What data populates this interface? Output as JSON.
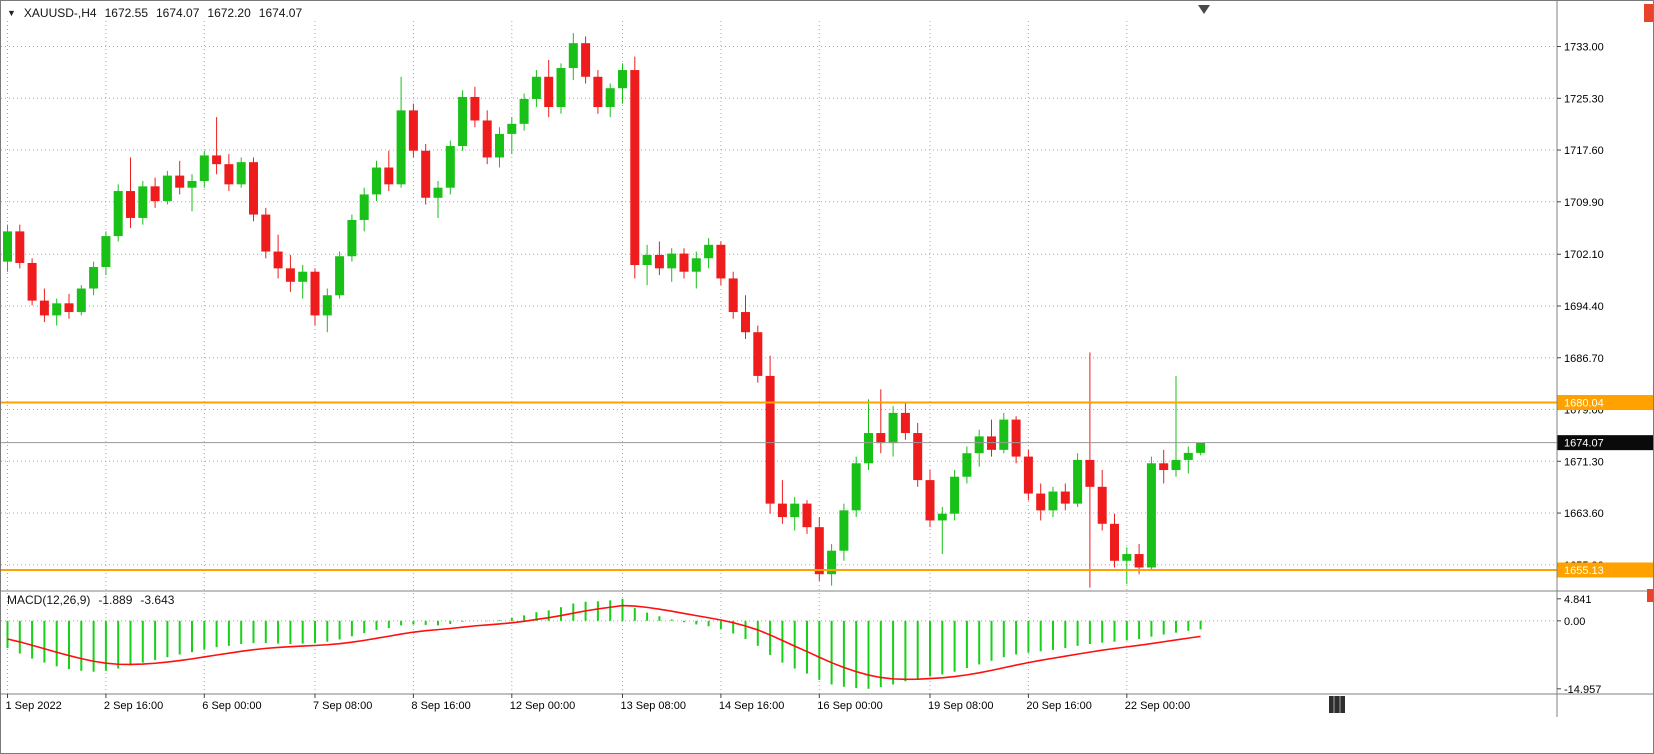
{
  "header": {
    "symbol_period": "XAUUSD-,H4",
    "open": "1672.55",
    "high": "1674.07",
    "low": "1672.20",
    "close": "1674.07"
  },
  "icons": {
    "symbol_dropdown": "▼"
  },
  "macd_info": {
    "label": "MACD(12,26,9)",
    "main": "-1.889",
    "signal": "-3.643"
  },
  "colors": {
    "bull": "#18c018",
    "bear": "#ee1c1c",
    "macd_hist": "#18d018",
    "macd_signal": "#ff0f0f",
    "hline": "#ffa200",
    "grid": "#a8a8a8",
    "price_box_bg": "#0a0a0a",
    "axis_text": "#000000"
  },
  "chart_data": {
    "type": "candlestick",
    "symbol": "XAUUSD-",
    "timeframe": "H4",
    "indicator": "MACD(12,26,9)",
    "legend_position": "top-left",
    "grid": "dotted",
    "price_axis": {
      "top_price": 1736.5,
      "bottom_price": 1652.3,
      "current_price": 1674.07,
      "current_price_label": "1674.07",
      "ticks": [
        {
          "p": 1733.0,
          "label": "1733.00"
        },
        {
          "p": 1725.3,
          "label": "1725.30"
        },
        {
          "p": 1717.6,
          "label": "1717.60"
        },
        {
          "p": 1709.9,
          "label": "1709.90"
        },
        {
          "p": 1702.1,
          "label": "1702.10"
        },
        {
          "p": 1694.4,
          "label": "1694.40"
        },
        {
          "p": 1686.7,
          "label": "1686.70"
        },
        {
          "p": 1679.0,
          "label": "1679.00"
        },
        {
          "p": 1671.3,
          "label": "1671.30"
        },
        {
          "p": 1663.6,
          "label": "1663.60"
        },
        {
          "p": 1655.9,
          "label": "1655.90"
        }
      ]
    },
    "hlines": [
      {
        "price": 1680.04,
        "label": "1680.04",
        "color": "#ffa200"
      },
      {
        "price": 1655.13,
        "label": "1655.13",
        "color": "#ffa200"
      }
    ],
    "time_axis": [
      {
        "index": 0,
        "label": "1 Sep 2022"
      },
      {
        "index": 8,
        "label": "2 Sep 16:00"
      },
      {
        "index": 16,
        "label": "6 Sep 00:00"
      },
      {
        "index": 25,
        "label": "7 Sep 08:00"
      },
      {
        "index": 33,
        "label": "8 Sep 16:00"
      },
      {
        "index": 41,
        "label": "12 Sep 00:00"
      },
      {
        "index": 50,
        "label": "13 Sep 08:00"
      },
      {
        "index": 58,
        "label": "14 Sep 16:00"
      },
      {
        "index": 66,
        "label": "16 Sep 00:00"
      },
      {
        "index": 75,
        "label": "19 Sep 08:00"
      },
      {
        "index": 83,
        "label": "20 Sep 16:00"
      },
      {
        "index": 91,
        "label": "22 Sep 00:00"
      }
    ],
    "candles": [
      [
        1701.0,
        1706.5,
        1699.5,
        1705.5
      ],
      [
        1705.5,
        1706.5,
        1700.0,
        1700.8
      ],
      [
        1700.8,
        1701.5,
        1694.5,
        1695.2
      ],
      [
        1695.2,
        1697.0,
        1692.0,
        1693.0
      ],
      [
        1693.0,
        1695.5,
        1691.5,
        1694.8
      ],
      [
        1694.8,
        1696.2,
        1692.5,
        1693.5
      ],
      [
        1693.5,
        1697.5,
        1693.0,
        1697.0
      ],
      [
        1697.0,
        1701.0,
        1696.0,
        1700.2
      ],
      [
        1700.2,
        1705.5,
        1699.0,
        1704.8
      ],
      [
        1704.8,
        1712.5,
        1704.0,
        1711.5
      ],
      [
        1711.5,
        1716.5,
        1706.0,
        1707.5
      ],
      [
        1707.5,
        1713.0,
        1706.5,
        1712.2
      ],
      [
        1712.2,
        1713.5,
        1709.0,
        1710.0
      ],
      [
        1710.0,
        1714.5,
        1709.5,
        1713.8
      ],
      [
        1713.8,
        1716.0,
        1711.0,
        1712.0
      ],
      [
        1712.0,
        1714.0,
        1708.5,
        1713.0
      ],
      [
        1713.0,
        1717.5,
        1712.0,
        1716.8
      ],
      [
        1716.8,
        1722.5,
        1714.0,
        1715.5
      ],
      [
        1715.5,
        1717.0,
        1711.5,
        1712.5
      ],
      [
        1712.5,
        1716.5,
        1712.0,
        1715.8
      ],
      [
        1715.8,
        1716.5,
        1707.0,
        1708.0
      ],
      [
        1708.0,
        1709.0,
        1701.5,
        1702.5
      ],
      [
        1702.5,
        1705.0,
        1698.5,
        1700.0
      ],
      [
        1700.0,
        1702.0,
        1696.5,
        1698.0
      ],
      [
        1698.0,
        1700.5,
        1695.5,
        1699.5
      ],
      [
        1699.5,
        1700.0,
        1691.5,
        1693.0
      ],
      [
        1693.0,
        1697.0,
        1690.5,
        1696.0
      ],
      [
        1696.0,
        1702.5,
        1695.5,
        1701.8
      ],
      [
        1701.8,
        1708.0,
        1701.0,
        1707.2
      ],
      [
        1707.2,
        1712.0,
        1705.5,
        1711.0
      ],
      [
        1711.0,
        1716.0,
        1710.0,
        1715.0
      ],
      [
        1715.0,
        1717.5,
        1711.5,
        1712.5
      ],
      [
        1712.5,
        1728.5,
        1712.0,
        1723.5
      ],
      [
        1723.5,
        1724.5,
        1716.5,
        1717.5
      ],
      [
        1717.5,
        1718.5,
        1709.5,
        1710.5
      ],
      [
        1710.5,
        1713.0,
        1707.5,
        1712.0
      ],
      [
        1712.0,
        1719.0,
        1711.0,
        1718.2
      ],
      [
        1718.2,
        1726.5,
        1717.5,
        1725.5
      ],
      [
        1725.5,
        1727.0,
        1721.0,
        1722.0
      ],
      [
        1722.0,
        1723.5,
        1715.5,
        1716.5
      ],
      [
        1716.5,
        1721.0,
        1715.0,
        1720.0
      ],
      [
        1720.0,
        1722.5,
        1717.0,
        1721.5
      ],
      [
        1721.5,
        1726.0,
        1720.5,
        1725.2
      ],
      [
        1725.2,
        1729.5,
        1724.0,
        1728.5
      ],
      [
        1728.5,
        1731.0,
        1722.5,
        1724.0
      ],
      [
        1724.0,
        1730.5,
        1723.0,
        1729.8
      ],
      [
        1729.8,
        1735.0,
        1728.0,
        1733.5
      ],
      [
        1733.5,
        1734.5,
        1727.5,
        1728.5
      ],
      [
        1728.5,
        1729.5,
        1723.0,
        1724.0
      ],
      [
        1724.0,
        1727.5,
        1722.5,
        1726.8
      ],
      [
        1726.8,
        1730.5,
        1724.5,
        1729.5
      ],
      [
        1729.5,
        1731.5,
        1698.5,
        1700.5
      ],
      [
        1700.5,
        1703.5,
        1697.5,
        1702.0
      ],
      [
        1702.0,
        1704.0,
        1699.0,
        1700.0
      ],
      [
        1700.0,
        1703.0,
        1698.0,
        1702.2
      ],
      [
        1702.2,
        1703.0,
        1698.5,
        1699.5
      ],
      [
        1699.5,
        1702.5,
        1697.0,
        1701.5
      ],
      [
        1701.5,
        1704.5,
        1700.0,
        1703.5
      ],
      [
        1703.5,
        1704.0,
        1697.5,
        1698.5
      ],
      [
        1698.5,
        1699.5,
        1692.5,
        1693.5
      ],
      [
        1693.5,
        1696.0,
        1689.5,
        1690.5
      ],
      [
        1690.5,
        1691.5,
        1683.0,
        1684.0
      ],
      [
        1684.0,
        1687.0,
        1663.5,
        1665.0
      ],
      [
        1665.0,
        1668.5,
        1662.0,
        1663.0
      ],
      [
        1663.0,
        1666.0,
        1661.0,
        1665.0
      ],
      [
        1665.0,
        1665.5,
        1660.5,
        1661.5
      ],
      [
        1661.5,
        1663.0,
        1653.5,
        1654.5
      ],
      [
        1654.5,
        1659.0,
        1652.8,
        1658.0
      ],
      [
        1658.0,
        1665.0,
        1656.5,
        1664.0
      ],
      [
        1664.0,
        1672.0,
        1663.0,
        1671.0
      ],
      [
        1671.0,
        1680.5,
        1670.0,
        1675.5
      ],
      [
        1675.5,
        1682.0,
        1672.5,
        1674.0
      ],
      [
        1674.0,
        1679.5,
        1672.0,
        1678.5
      ],
      [
        1678.5,
        1680.0,
        1674.5,
        1675.5
      ],
      [
        1675.5,
        1677.0,
        1667.5,
        1668.5
      ],
      [
        1668.5,
        1670.0,
        1661.5,
        1662.5
      ],
      [
        1662.5,
        1664.5,
        1657.5,
        1663.5
      ],
      [
        1663.5,
        1670.0,
        1662.5,
        1669.0
      ],
      [
        1669.0,
        1673.5,
        1668.0,
        1672.5
      ],
      [
        1672.5,
        1676.0,
        1670.5,
        1675.0
      ],
      [
        1675.0,
        1677.5,
        1672.0,
        1673.0
      ],
      [
        1673.0,
        1678.5,
        1672.5,
        1677.5
      ],
      [
        1677.5,
        1678.0,
        1671.0,
        1672.0
      ],
      [
        1672.0,
        1673.0,
        1665.5,
        1666.5
      ],
      [
        1666.5,
        1668.0,
        1662.5,
        1664.0
      ],
      [
        1664.0,
        1667.5,
        1663.0,
        1666.8
      ],
      [
        1666.8,
        1668.0,
        1664.0,
        1665.0
      ],
      [
        1665.0,
        1672.5,
        1664.5,
        1671.5
      ],
      [
        1671.5,
        1687.5,
        1652.5,
        1667.5
      ],
      [
        1667.5,
        1670.0,
        1661.0,
        1662.0
      ],
      [
        1662.0,
        1663.5,
        1655.5,
        1656.5
      ],
      [
        1656.5,
        1658.5,
        1653.0,
        1657.5
      ],
      [
        1657.5,
        1659.0,
        1654.5,
        1655.5
      ],
      [
        1655.5,
        1672.0,
        1655.0,
        1671.0
      ],
      [
        1671.0,
        1673.0,
        1668.0,
        1670.0
      ],
      [
        1670.0,
        1684.0,
        1669.0,
        1671.5
      ],
      [
        1671.5,
        1673.5,
        1669.5,
        1672.55
      ],
      [
        1672.55,
        1674.07,
        1672.2,
        1674.07
      ]
    ],
    "macd": {
      "range": [
        -16.1,
        5.9
      ],
      "signal_start": -3.5,
      "ticks": [
        {
          "v": 4.841,
          "label": "4.841"
        },
        {
          "v": 0,
          "label": "0.00"
        },
        {
          "v": -14.957,
          "label": "-14.957"
        }
      ],
      "values": [
        -6.0,
        -7.2,
        -8.3,
        -9.2,
        -10.0,
        -10.6,
        -11.0,
        -11.2,
        -11.0,
        -10.5,
        -9.8,
        -9.2,
        -8.6,
        -8.0,
        -7.4,
        -6.9,
        -6.3,
        -5.8,
        -5.5,
        -5.1,
        -4.9,
        -4.9,
        -5.0,
        -5.1,
        -5.0,
        -4.9,
        -4.6,
        -4.1,
        -3.4,
        -2.7,
        -2.0,
        -1.6,
        -1.0,
        -0.8,
        -0.9,
        -1.0,
        -0.7,
        -0.2,
        0.0,
        -0.1,
        0.2,
        0.6,
        1.2,
        1.9,
        2.3,
        3.0,
        3.8,
        4.2,
        4.3,
        4.5,
        4.841,
        2.8,
        1.8,
        1.0,
        0.3,
        -0.3,
        -0.8,
        -1.2,
        -1.8,
        -2.8,
        -4.0,
        -5.5,
        -7.5,
        -9.2,
        -10.5,
        -11.6,
        -13.0,
        -14.0,
        -14.5,
        -14.8,
        -14.957,
        -14.6,
        -14.0,
        -13.3,
        -12.7,
        -12.2,
        -11.8,
        -11.2,
        -10.4,
        -9.6,
        -8.8,
        -8.0,
        -7.4,
        -7.0,
        -6.7,
        -6.4,
        -6.0,
        -5.5,
        -5.1,
        -4.8,
        -4.6,
        -4.3,
        -4.0,
        -3.5,
        -3.0,
        -2.6,
        -2.2,
        -1.889
      ]
    }
  }
}
